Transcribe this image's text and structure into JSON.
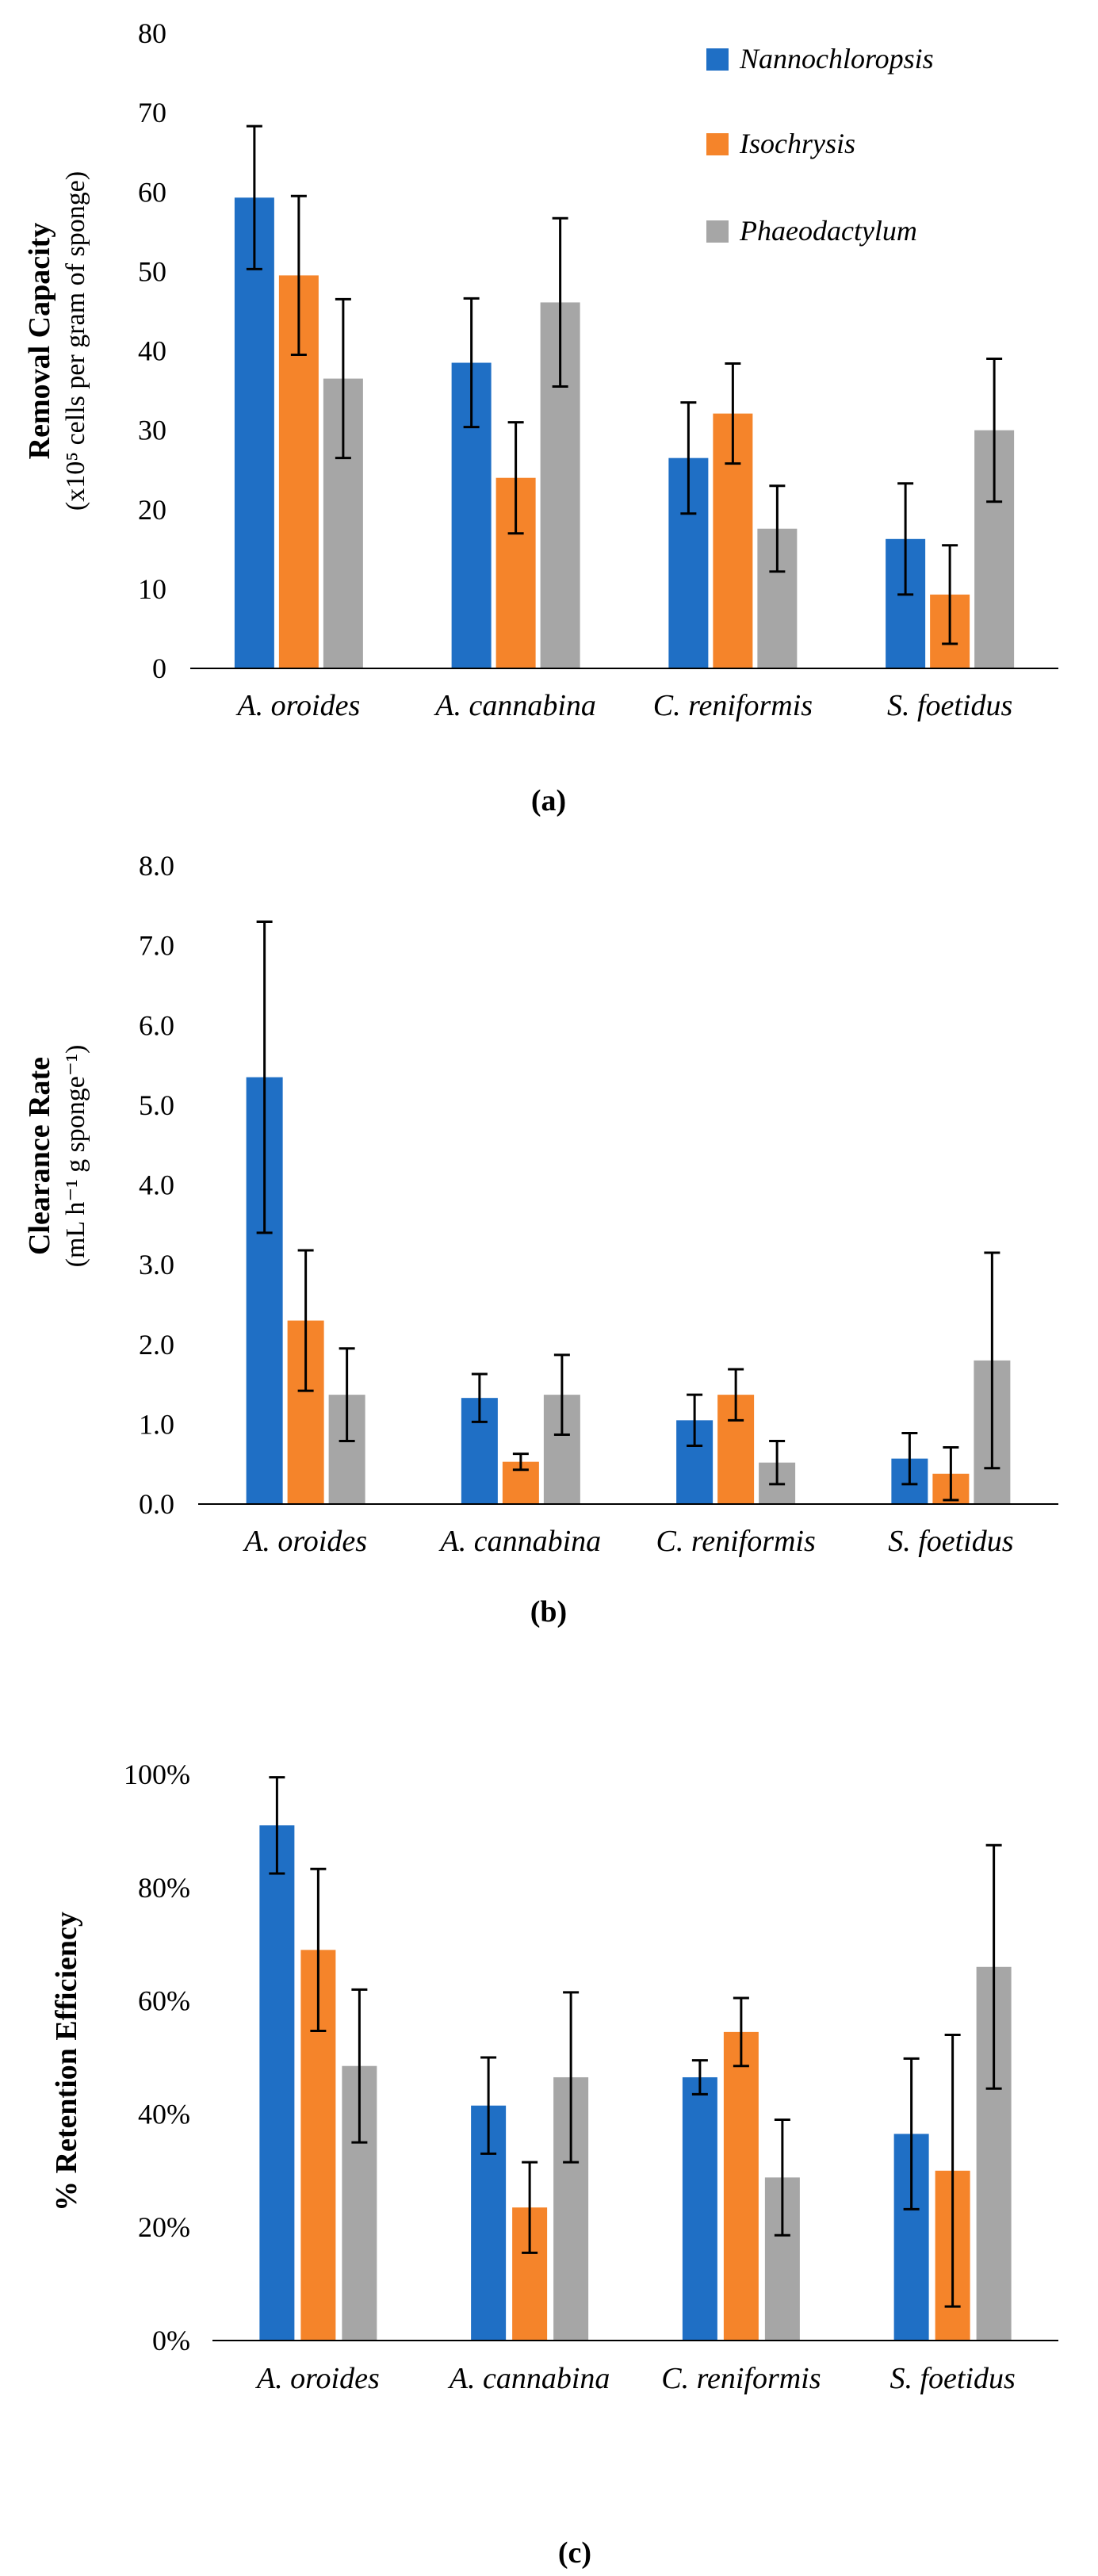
{
  "colors": {
    "Nannochloropsis": "#1f6fc5",
    "Isochrysis": "#f5842a",
    "Phaeodactylum": "#a6a6a6"
  },
  "legend": [
    "Nannochloropsis",
    "Isochrysis",
    "Phaeodactylum"
  ],
  "chart_data": [
    {
      "type": "bar",
      "panel": "(a)",
      "title": "",
      "ylabel": "Removal Capacity",
      "ylabel_sub": "(x10⁵ cells per gram of sponge)",
      "xlabel": "",
      "categories": [
        "A. oroides",
        "A. cannabina",
        "C. reniformis",
        "S. foetidus"
      ],
      "ylim": [
        0,
        80
      ],
      "yticks": [
        0,
        10,
        20,
        30,
        40,
        50,
        60,
        70,
        80
      ],
      "ytick_labels": [
        "0",
        "10",
        "20",
        "30",
        "40",
        "50",
        "60",
        "70",
        "80"
      ],
      "legend_position": "top-right",
      "series": [
        {
          "name": "Nannochloropsis",
          "values": [
            59.3,
            38.5,
            26.5,
            16.3
          ],
          "errors": [
            9.0,
            8.1,
            7.0,
            7.0
          ]
        },
        {
          "name": "Isochrysis",
          "values": [
            49.5,
            24.0,
            32.1,
            9.3
          ],
          "errors": [
            10.0,
            7.0,
            6.3,
            6.2
          ]
        },
        {
          "name": "Phaeodactylum",
          "values": [
            36.5,
            46.1,
            17.6,
            30.0
          ],
          "errors": [
            10.0,
            10.6,
            5.4,
            9.0
          ]
        }
      ]
    },
    {
      "type": "bar",
      "panel": "(b)",
      "title": "",
      "ylabel": "Clearance Rate",
      "ylabel_sub": "(mL h⁻¹ g sponge⁻¹)",
      "xlabel": "",
      "categories": [
        "A. oroides",
        "A. cannabina",
        "C. reniformis",
        "S. foetidus"
      ],
      "ylim": [
        0,
        8
      ],
      "yticks": [
        0,
        1,
        2,
        3,
        4,
        5,
        6,
        7,
        8
      ],
      "ytick_labels": [
        "0.0",
        "1.0",
        "2.0",
        "3.0",
        "4.0",
        "5.0",
        "6.0",
        "7.0",
        "8.0"
      ],
      "series": [
        {
          "name": "Nannochloropsis",
          "values": [
            5.35,
            1.33,
            1.05,
            0.57
          ],
          "errors": [
            1.95,
            0.3,
            0.32,
            0.32
          ]
        },
        {
          "name": "Isochrysis",
          "values": [
            2.3,
            0.53,
            1.37,
            0.38
          ],
          "errors": [
            0.88,
            0.1,
            0.32,
            0.33
          ]
        },
        {
          "name": "Phaeodactylum",
          "values": [
            1.37,
            1.37,
            0.52,
            1.8
          ],
          "errors": [
            0.58,
            0.5,
            0.27,
            1.35
          ]
        }
      ]
    },
    {
      "type": "bar",
      "panel": "(c)",
      "title": "",
      "ylabel": "% Retention Efficiency",
      "ylabel_sub": "",
      "xlabel": "",
      "categories": [
        "A. oroides",
        "A. cannabina",
        "C. reniformis",
        "S. foetidus"
      ],
      "ylim": [
        0,
        100
      ],
      "yticks": [
        0,
        20,
        40,
        60,
        80,
        100
      ],
      "ytick_labels": [
        "0%",
        "20%",
        "40%",
        "60%",
        "80%",
        "100%"
      ],
      "series": [
        {
          "name": "Nannochloropsis",
          "values": [
            91.0,
            41.5,
            46.5,
            36.5
          ],
          "errors": [
            8.5,
            8.5,
            3.0,
            13.3
          ]
        },
        {
          "name": "Isochrysis",
          "values": [
            69.0,
            23.5,
            54.5,
            30.0
          ],
          "errors": [
            14.3,
            8.0,
            6.0,
            24.0
          ]
        },
        {
          "name": "Phaeodactylum",
          "values": [
            48.5,
            46.5,
            28.8,
            66.0
          ],
          "errors": [
            13.5,
            15.0,
            10.2,
            21.5
          ]
        }
      ]
    }
  ]
}
